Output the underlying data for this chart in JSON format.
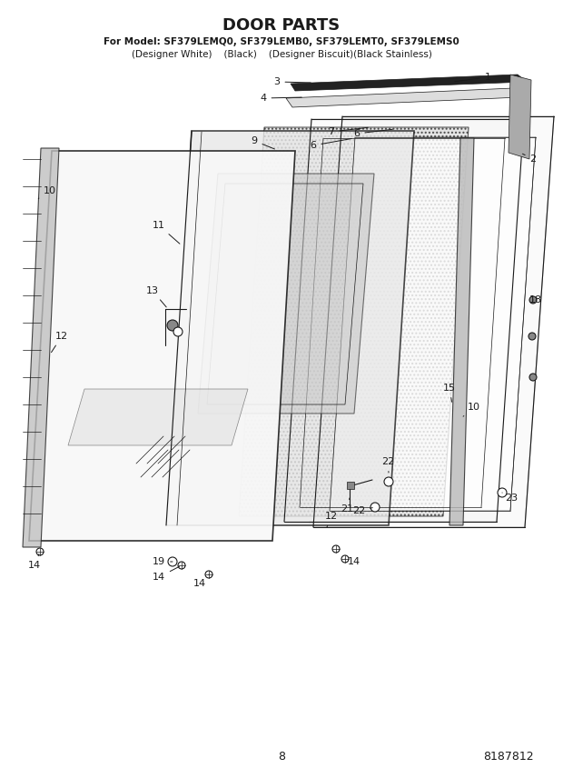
{
  "title": "DOOR PARTS",
  "subtitle_line1": "For Model: SF379LEMQ0, SF379LEMB0, SF379LEMT0, SF379LEMS0",
  "subtitle_line2": "(Designer White)    (Black)    (Designer Biscuit)(Black Stainless)",
  "page_number": "8",
  "part_number": "8187812",
  "bg": "#ffffff",
  "lc": "#1a1a1a",
  "figw": 6.2,
  "figh": 8.56,
  "dpi": 100
}
